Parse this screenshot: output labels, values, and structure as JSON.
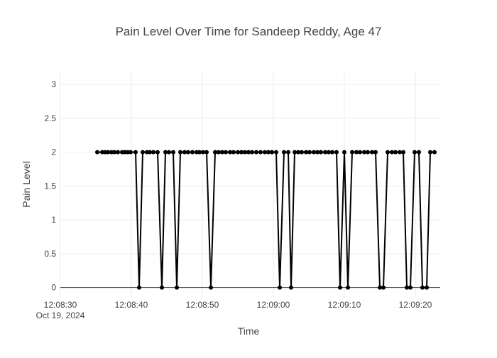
{
  "chart_data": {
    "type": "line",
    "title": "Pain Level Over Time for Sandeep Reddy, Age 47",
    "xlabel": "Time",
    "ylabel": "Pain Level",
    "date_label": "Oct 19, 2024",
    "x_unit": "time of day (seconds), 12:08:30 = 0",
    "xlim": [
      "12:08:30",
      "12:09:23.5"
    ],
    "ylim": [
      -0.15,
      3.2
    ],
    "x_ticks": [
      {
        "value": 0,
        "label": "12:08:30"
      },
      {
        "value": 10,
        "label": "12:08:40"
      },
      {
        "value": 20,
        "label": "12:08:50"
      },
      {
        "value": 30,
        "label": "12:09:00"
      },
      {
        "value": 40,
        "label": "12:09:10"
      },
      {
        "value": 50,
        "label": "12:09:20"
      }
    ],
    "y_ticks": [
      {
        "value": 0,
        "label": "0"
      },
      {
        "value": 0.5,
        "label": "0.5"
      },
      {
        "value": 1,
        "label": "1"
      },
      {
        "value": 1.5,
        "label": "1.5"
      },
      {
        "value": 2,
        "label": "2"
      },
      {
        "value": 2.5,
        "label": "2.5"
      },
      {
        "value": 3,
        "label": "3"
      }
    ],
    "grid": true,
    "series": [
      {
        "color": "#000000",
        "x": [
          "12:08:35.2",
          "12:08:35.9",
          "12:08:36.3",
          "12:08:36.7",
          "12:08:37.2",
          "12:08:37.6",
          "12:08:38.1",
          "12:08:38.7",
          "12:08:39.1",
          "12:08:39.5",
          "12:08:39.9",
          "12:08:40.6",
          "12:08:41.1",
          "12:08:41.6",
          "12:08:42.2",
          "12:08:42.6",
          "12:08:43.1",
          "12:08:43.7",
          "12:08:44.3",
          "12:08:44.8",
          "12:08:45.3",
          "12:08:45.9",
          "12:08:46.4",
          "12:08:46.9",
          "12:08:47.5",
          "12:08:48.0",
          "12:08:48.6",
          "12:08:49.2",
          "12:08:49.6",
          "12:08:50.1",
          "12:08:50.6",
          "12:08:51.2",
          "12:08:51.8",
          "12:08:52.3",
          "12:08:52.8",
          "12:08:53.3",
          "12:08:53.9",
          "12:08:54.4",
          "12:08:55.0",
          "12:08:55.5",
          "12:08:56.0",
          "12:08:56.5",
          "12:08:57.0",
          "12:08:57.6",
          "12:08:58.2",
          "12:08:58.8",
          "12:08:59.3",
          "12:08:59.8",
          "12:09:00.4",
          "12:09:00.9",
          "12:09:01.5",
          "12:09:02.1",
          "12:09:02.5",
          "12:09:03.0",
          "12:09:03.5",
          "12:09:04.0",
          "12:09:04.6",
          "12:09:05.1",
          "12:09:05.7",
          "12:09:06.2",
          "12:09:06.7",
          "12:09:07.3",
          "12:09:07.8",
          "12:09:08.3",
          "12:09:08.9",
          "12:09:09.4",
          "12:09:10.0",
          "12:09:10.5",
          "12:09:11.1",
          "12:09:11.7",
          "12:09:12.2",
          "12:09:12.8",
          "12:09:13.3",
          "12:09:13.9",
          "12:09:14.4",
          "12:09:15.0",
          "12:09:15.5",
          "12:09:16.1",
          "12:09:16.7",
          "12:09:17.2",
          "12:09:17.8",
          "12:09:18.3",
          "12:09:18.8",
          "12:09:19.3",
          "12:09:19.9",
          "12:09:20.5",
          "12:09:21.0",
          "12:09:21.6",
          "12:09:22.1",
          "12:09:22.7"
        ],
        "y": [
          2,
          2,
          2,
          2,
          2,
          2,
          2,
          2,
          2,
          2,
          2,
          2,
          0,
          2,
          2,
          2,
          2,
          2,
          0,
          2,
          2,
          2,
          0,
          2,
          2,
          2,
          2,
          2,
          2,
          2,
          2,
          0,
          2,
          2,
          2,
          2,
          2,
          2,
          2,
          2,
          2,
          2,
          2,
          2,
          2,
          2,
          2,
          2,
          2,
          0,
          2,
          2,
          0,
          2,
          2,
          2,
          2,
          2,
          2,
          2,
          2,
          2,
          2,
          2,
          2,
          0,
          2,
          0,
          2,
          2,
          2,
          2,
          2,
          2,
          2,
          0,
          0,
          2,
          2,
          2,
          2,
          2,
          0,
          0,
          2,
          2,
          0,
          0,
          2,
          2
        ]
      }
    ]
  }
}
